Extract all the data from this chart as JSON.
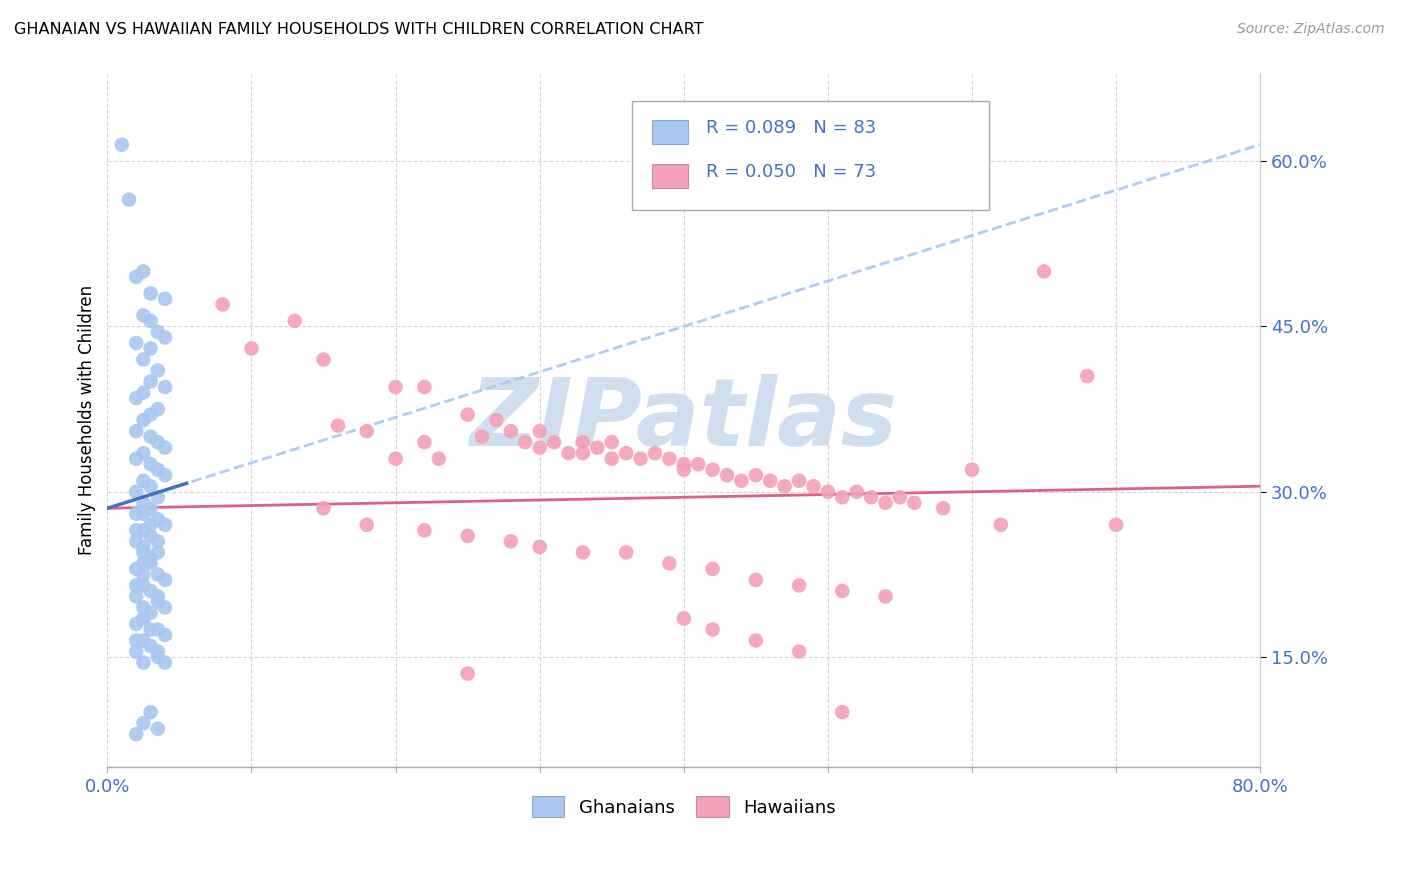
{
  "title": "GHANAIAN VS HAWAIIAN FAMILY HOUSEHOLDS WITH CHILDREN CORRELATION CHART",
  "source": "Source: ZipAtlas.com",
  "ylabel": "Family Households with Children",
  "ytick_labels": [
    "15.0%",
    "30.0%",
    "45.0%",
    "60.0%"
  ],
  "ytick_values": [
    0.15,
    0.3,
    0.45,
    0.6
  ],
  "xlim": [
    0.0,
    0.8
  ],
  "ylim": [
    0.05,
    0.68
  ],
  "ghanaian_color": "#a8c8f0",
  "hawaiian_color": "#f4a0b8",
  "ghanaian_line_color": "#4472c4",
  "ghanaian_dash_color": "#a8c8f0",
  "hawaiian_line_color": "#e06080",
  "legend_text_color": "#4472c4",
  "axis_label_color": "#4472c4",
  "watermark_color": "#d0dff0",
  "watermark_text": "ZIPatlas",
  "ghanaian_R": "0.089",
  "ghanaian_N": "83",
  "hawaiian_R": "0.050",
  "hawaiian_N": "73",
  "ghanaian_trend_x0": 0.0,
  "ghanaian_trend_y0": 0.285,
  "ghanaian_trend_x1": 0.8,
  "ghanaian_trend_y1": 0.615,
  "hawaiian_trend_x0": 0.0,
  "hawaiian_trend_y0": 0.285,
  "hawaiian_trend_x1": 0.8,
  "hawaiian_trend_y1": 0.305,
  "ghanaian_x": [
    0.01,
    0.015,
    0.025,
    0.02,
    0.03,
    0.04,
    0.025,
    0.03,
    0.035,
    0.04,
    0.02,
    0.03,
    0.025,
    0.035,
    0.03,
    0.04,
    0.025,
    0.02,
    0.035,
    0.03,
    0.025,
    0.02,
    0.03,
    0.035,
    0.04,
    0.025,
    0.02,
    0.03,
    0.035,
    0.04,
    0.025,
    0.03,
    0.02,
    0.035,
    0.025,
    0.03,
    0.02,
    0.035,
    0.04,
    0.025,
    0.03,
    0.02,
    0.025,
    0.035,
    0.03,
    0.025,
    0.02,
    0.035,
    0.04,
    0.025,
    0.03,
    0.02,
    0.035,
    0.025,
    0.03,
    0.025,
    0.02,
    0.035,
    0.04,
    0.025,
    0.03,
    0.02,
    0.035,
    0.04,
    0.025,
    0.03,
    0.02,
    0.035,
    0.025,
    0.03,
    0.025,
    0.02,
    0.035,
    0.04,
    0.025,
    0.03,
    0.02,
    0.035,
    0.025,
    0.03,
    0.035,
    0.02,
    0.025
  ],
  "ghanaian_y": [
    0.615,
    0.565,
    0.5,
    0.495,
    0.48,
    0.475,
    0.46,
    0.455,
    0.445,
    0.44,
    0.435,
    0.43,
    0.42,
    0.41,
    0.4,
    0.395,
    0.39,
    0.385,
    0.375,
    0.37,
    0.365,
    0.355,
    0.35,
    0.345,
    0.34,
    0.335,
    0.33,
    0.325,
    0.32,
    0.315,
    0.31,
    0.305,
    0.3,
    0.295,
    0.29,
    0.285,
    0.28,
    0.275,
    0.27,
    0.265,
    0.26,
    0.255,
    0.25,
    0.245,
    0.24,
    0.235,
    0.23,
    0.225,
    0.22,
    0.215,
    0.21,
    0.205,
    0.2,
    0.195,
    0.19,
    0.185,
    0.18,
    0.175,
    0.17,
    0.165,
    0.16,
    0.155,
    0.15,
    0.145,
    0.28,
    0.27,
    0.265,
    0.255,
    0.245,
    0.235,
    0.225,
    0.215,
    0.205,
    0.195,
    0.185,
    0.175,
    0.165,
    0.155,
    0.145,
    0.1,
    0.085,
    0.08,
    0.09
  ],
  "hawaiian_x": [
    0.08,
    0.1,
    0.13,
    0.15,
    0.16,
    0.18,
    0.2,
    0.2,
    0.22,
    0.22,
    0.23,
    0.25,
    0.26,
    0.27,
    0.28,
    0.29,
    0.3,
    0.3,
    0.31,
    0.32,
    0.33,
    0.33,
    0.34,
    0.35,
    0.35,
    0.36,
    0.37,
    0.38,
    0.39,
    0.4,
    0.4,
    0.41,
    0.42,
    0.43,
    0.44,
    0.45,
    0.46,
    0.47,
    0.48,
    0.49,
    0.5,
    0.51,
    0.52,
    0.53,
    0.54,
    0.55,
    0.56,
    0.58,
    0.6,
    0.62,
    0.65,
    0.68,
    0.7,
    0.15,
    0.18,
    0.22,
    0.25,
    0.28,
    0.3,
    0.33,
    0.36,
    0.39,
    0.42,
    0.45,
    0.48,
    0.51,
    0.54,
    0.4,
    0.42,
    0.45,
    0.48,
    0.51,
    0.25
  ],
  "hawaiian_y": [
    0.47,
    0.43,
    0.455,
    0.42,
    0.36,
    0.355,
    0.395,
    0.33,
    0.395,
    0.345,
    0.33,
    0.37,
    0.35,
    0.365,
    0.355,
    0.345,
    0.355,
    0.34,
    0.345,
    0.335,
    0.345,
    0.335,
    0.34,
    0.345,
    0.33,
    0.335,
    0.33,
    0.335,
    0.33,
    0.325,
    0.32,
    0.325,
    0.32,
    0.315,
    0.31,
    0.315,
    0.31,
    0.305,
    0.31,
    0.305,
    0.3,
    0.295,
    0.3,
    0.295,
    0.29,
    0.295,
    0.29,
    0.285,
    0.32,
    0.27,
    0.5,
    0.405,
    0.27,
    0.285,
    0.27,
    0.265,
    0.26,
    0.255,
    0.25,
    0.245,
    0.245,
    0.235,
    0.23,
    0.22,
    0.215,
    0.21,
    0.205,
    0.185,
    0.175,
    0.165,
    0.155,
    0.1,
    0.135
  ]
}
